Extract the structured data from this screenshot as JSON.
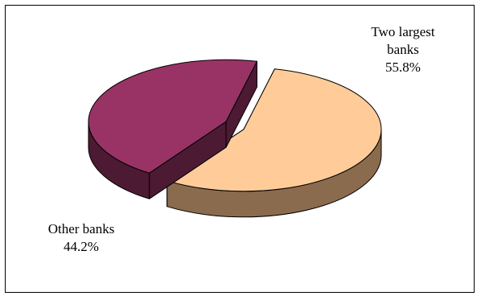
{
  "chart_data": {
    "type": "pie",
    "style": "3d-exploded",
    "title": "",
    "legend": "none",
    "slices": [
      {
        "name": "Two largest banks",
        "label_lines": [
          "Two largest",
          "banks"
        ],
        "percent_label": "55.8%",
        "value": 55.8,
        "color": "#ffcc99",
        "side_color": "#8b6b4e"
      },
      {
        "name": "Other banks",
        "label_lines": [
          "Other banks"
        ],
        "percent_label": "44.2%",
        "value": 44.2,
        "color": "#993366",
        "side_color": "#4d1a33"
      }
    ]
  }
}
